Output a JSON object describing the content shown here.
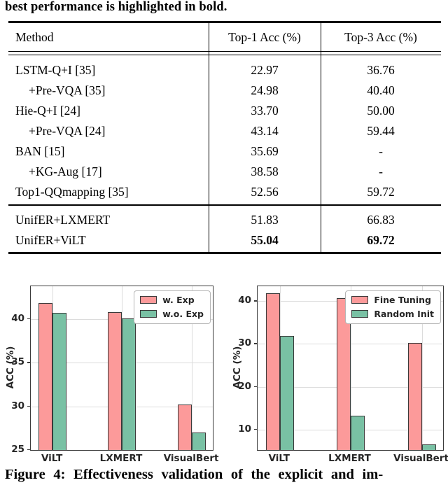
{
  "page": {
    "top_caption": "best performance is highlighted in bold.",
    "bottom_caption": "Figure 4: Effectiveness validation of the explicit and im-"
  },
  "table": {
    "columns": [
      "Method",
      "Top-1 Acc (%)",
      "Top-3 Acc (%)"
    ],
    "sections": [
      {
        "rows": [
          {
            "method": "LSTM-Q+I [35]",
            "indent": false,
            "top1": "22.97",
            "top3": "36.76",
            "bold": false
          },
          {
            "method": "+Pre-VQA [35]",
            "indent": true,
            "top1": "24.98",
            "top3": "40.40",
            "bold": false
          },
          {
            "method": "Hie-Q+I [24]",
            "indent": false,
            "top1": "33.70",
            "top3": "50.00",
            "bold": false
          },
          {
            "method": "+Pre-VQA [24]",
            "indent": true,
            "top1": "43.14",
            "top3": "59.44",
            "bold": false
          },
          {
            "method": "BAN [15]",
            "indent": false,
            "top1": "35.69",
            "top3": "-",
            "bold": false
          },
          {
            "method": "+KG-Aug [17]",
            "indent": true,
            "top1": "38.58",
            "top3": "-",
            "bold": false
          },
          {
            "method": "Top1-QQmapping [35]",
            "indent": false,
            "top1": "52.56",
            "top3": "59.72",
            "bold": false
          }
        ]
      },
      {
        "rows": [
          {
            "method": "UnifER+LXMERT",
            "indent": false,
            "top1": "51.83",
            "top3": "66.83",
            "bold": false
          },
          {
            "method": "UnifER+ViLT",
            "indent": false,
            "top1": "55.04",
            "top3": "69.72",
            "bold": true
          }
        ]
      }
    ]
  },
  "chart_data": [
    {
      "type": "bar",
      "title": "",
      "xlabel": "",
      "ylabel": "ACC (%)",
      "categories": [
        "ViLT",
        "LXMERT",
        "VisualBert"
      ],
      "series": [
        {
          "name": "w. Exp",
          "color": "#FC9A9A",
          "values": [
            41.8,
            40.8,
            30.2
          ]
        },
        {
          "name": "w.o. Exp",
          "color": "#79C1A4",
          "values": [
            40.7,
            40.1,
            27.0
          ]
        }
      ],
      "ylim": [
        25,
        43.75
      ],
      "yticks": [
        25,
        30,
        35,
        40
      ],
      "grid": true,
      "legend_position": "upper right",
      "bar_edge_color": "#3a3a3a"
    },
    {
      "type": "bar",
      "title": "",
      "xlabel": "",
      "ylabel": "ACC (%)",
      "categories": [
        "ViLT",
        "LXMERT",
        "VisualBert"
      ],
      "series": [
        {
          "name": "Fine Tuning",
          "color": "#FC9A9A",
          "values": [
            41.8,
            40.8,
            30.2
          ]
        },
        {
          "name": "Random Init",
          "color": "#79C1A4",
          "values": [
            31.9,
            13.2,
            6.5
          ]
        }
      ],
      "ylim": [
        5.2,
        43.5
      ],
      "yticks": [
        10,
        20,
        30,
        40
      ],
      "grid": true,
      "legend_position": "upper right",
      "bar_edge_color": "#3a3a3a"
    }
  ]
}
